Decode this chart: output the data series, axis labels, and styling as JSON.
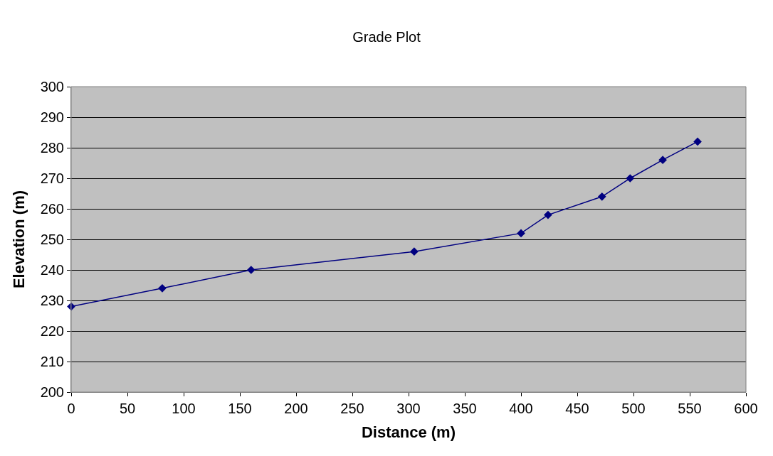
{
  "chart_data": {
    "type": "line",
    "title": "Grade Plot",
    "xlabel": "Distance (m)",
    "ylabel": "Elevation (m)",
    "x": [
      0,
      81,
      160,
      305,
      400,
      424,
      472,
      497,
      526,
      557
    ],
    "series": [
      {
        "color": "#000080",
        "values": [
          228,
          234,
          240,
          246,
          252,
          258,
          264,
          270,
          276,
          282
        ]
      }
    ],
    "xlim": [
      0,
      600
    ],
    "xticks": [
      0,
      50,
      100,
      150,
      200,
      250,
      300,
      350,
      400,
      450,
      500,
      550,
      600
    ],
    "ylim": [
      200,
      300
    ],
    "yticks": [
      200,
      210,
      220,
      230,
      240,
      250,
      260,
      270,
      280,
      290,
      300
    ],
    "grid": "y",
    "legend": false,
    "marker": "diamond",
    "line_style": "solid"
  }
}
